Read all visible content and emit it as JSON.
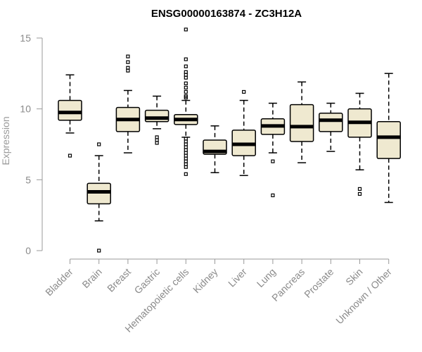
{
  "chart_data": {
    "type": "boxplot",
    "title": "ENSG00000163874 - ZC3H12A",
    "ylabel": "Expression",
    "xlabel": "",
    "ylim": [
      0,
      15
    ],
    "yticks": [
      0,
      5,
      10,
      15
    ],
    "grid": false,
    "colors": {
      "box_fill": "#efe9d0",
      "box_stroke": "#000000",
      "axis": "#9a9a9a",
      "tick_text": "#8a8a8a"
    },
    "categories": [
      "Bladder",
      "Brain",
      "Breast",
      "Gastric",
      "Hematopoietic cells",
      "Kidney",
      "Liver",
      "Lung",
      "Pancreas",
      "Prostate",
      "Skin",
      "Unknown / Other"
    ],
    "boxes": [
      {
        "category": "Bladder",
        "whisker_low": 8.3,
        "q1": 9.2,
        "median": 9.75,
        "q3": 10.6,
        "whisker_high": 12.4,
        "outliers": [
          6.7
        ]
      },
      {
        "category": "Brain",
        "whisker_low": 2.1,
        "q1": 3.3,
        "median": 4.15,
        "q3": 4.75,
        "whisker_high": 6.7,
        "outliers": [
          7.5,
          0.0
        ]
      },
      {
        "category": "Breast",
        "whisker_low": 6.9,
        "q1": 8.4,
        "median": 9.25,
        "q3": 10.1,
        "whisker_high": 11.3,
        "outliers": [
          13.7,
          13.3,
          12.9,
          12.7
        ]
      },
      {
        "category": "Gastric",
        "whisker_low": 8.6,
        "q1": 9.1,
        "median": 9.35,
        "q3": 9.9,
        "whisker_high": 10.9,
        "outliers": [
          8.0,
          7.8,
          7.6
        ]
      },
      {
        "category": "Hematopoietic cells",
        "whisker_low": 8.0,
        "q1": 8.9,
        "median": 9.25,
        "q3": 9.6,
        "whisker_high": 10.6,
        "outliers": [
          15.6,
          13.5,
          13.0,
          12.6,
          12.4,
          12.2,
          11.8,
          11.5,
          11.2,
          10.9,
          10.8,
          7.9,
          7.7,
          7.5,
          7.3,
          7.1,
          6.9,
          6.7,
          6.5,
          6.3,
          6.1,
          5.9,
          5.4
        ]
      },
      {
        "category": "Kidney",
        "whisker_low": 5.5,
        "q1": 6.8,
        "median": 7.0,
        "q3": 7.8,
        "whisker_high": 8.8,
        "outliers": []
      },
      {
        "category": "Liver",
        "whisker_low": 5.3,
        "q1": 6.7,
        "median": 7.5,
        "q3": 8.5,
        "whisker_high": 10.6,
        "outliers": [
          11.2
        ]
      },
      {
        "category": "Lung",
        "whisker_low": 6.9,
        "q1": 8.2,
        "median": 8.8,
        "q3": 9.3,
        "whisker_high": 10.4,
        "outliers": [
          6.3,
          3.9
        ]
      },
      {
        "category": "Pancreas",
        "whisker_low": 6.2,
        "q1": 7.7,
        "median": 8.75,
        "q3": 10.3,
        "whisker_high": 11.9,
        "outliers": []
      },
      {
        "category": "Prostate",
        "whisker_low": 7.0,
        "q1": 8.4,
        "median": 9.2,
        "q3": 9.7,
        "whisker_high": 10.4,
        "outliers": []
      },
      {
        "category": "Skin",
        "whisker_low": 5.7,
        "q1": 8.0,
        "median": 9.05,
        "q3": 10.0,
        "whisker_high": 11.1,
        "outliers": [
          4.35,
          4.0
        ]
      },
      {
        "category": "Unknown / Other",
        "whisker_low": 3.4,
        "q1": 6.5,
        "median": 8.0,
        "q3": 9.1,
        "whisker_high": 12.5,
        "outliers": []
      }
    ]
  }
}
